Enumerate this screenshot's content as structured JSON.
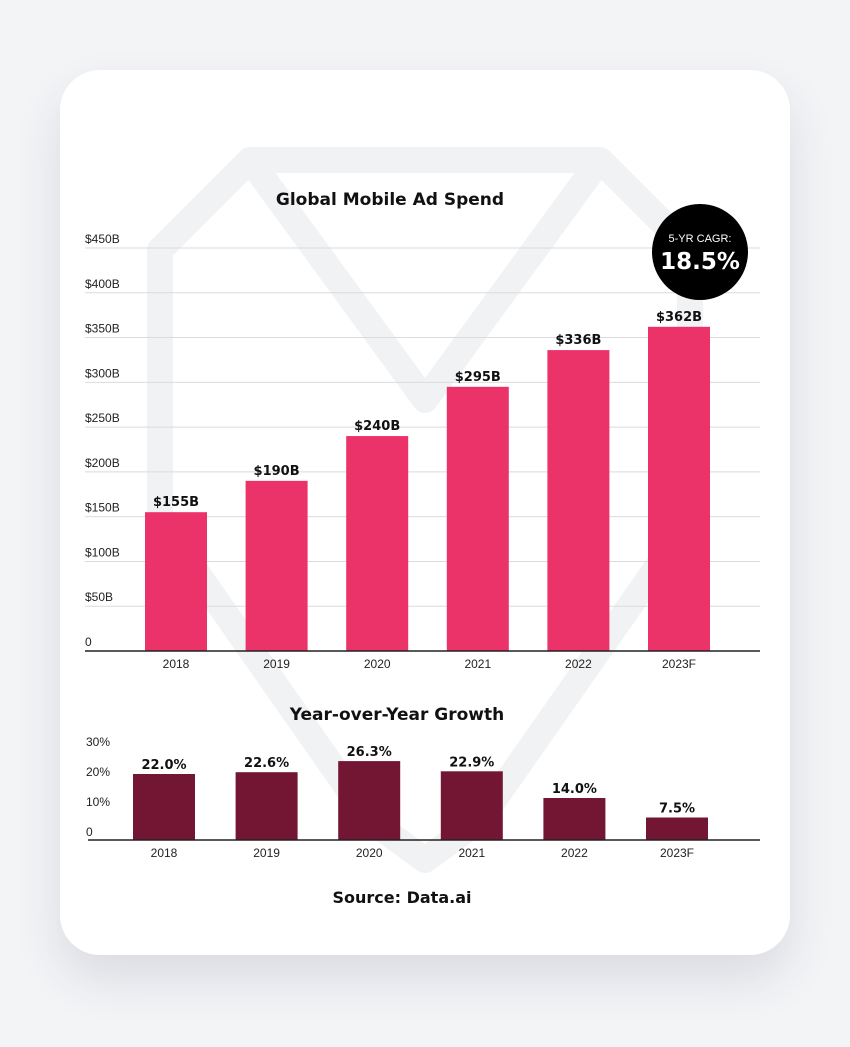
{
  "colors": {
    "background": "#f3f4f6",
    "card": "#ffffff",
    "spend_bar": "#eb336a",
    "growth_bar": "#731634",
    "badge": "#000000",
    "text": "#111111"
  },
  "chart_data": [
    {
      "type": "bar",
      "title": "Global Mobile Ad Spend",
      "xlabel": "",
      "ylabel": "",
      "categories": [
        "2018",
        "2019",
        "2020",
        "2021",
        "2022",
        "2023F"
      ],
      "values": [
        155,
        190,
        240,
        295,
        336,
        362
      ],
      "value_labels": [
        "$155B",
        "$190B",
        "$240B",
        "$295B",
        "$336B",
        "$362B"
      ],
      "ylim": [
        0,
        450
      ],
      "yticks": [
        0,
        50,
        100,
        150,
        200,
        250,
        300,
        350,
        400,
        450
      ],
      "ytick_labels": [
        "0",
        "$50B",
        "$100B",
        "$150B",
        "$200B",
        "$250B",
        "$300B",
        "$350B",
        "$400B",
        "$450B"
      ],
      "grid": true,
      "annotation": {
        "label": "5-YR CAGR:",
        "value": "18.5%"
      }
    },
    {
      "type": "bar",
      "title": "Year-over-Year Growth",
      "xlabel": "",
      "ylabel": "",
      "categories": [
        "2018",
        "2019",
        "2020",
        "2021",
        "2022",
        "2023F"
      ],
      "values": [
        22.0,
        22.6,
        26.3,
        22.9,
        14.0,
        7.5
      ],
      "value_labels": [
        "22.0%",
        "22.6%",
        "26.3%",
        "22.9%",
        "14.0%",
        "7.5%"
      ],
      "ylim": [
        0,
        30
      ],
      "yticks": [
        0,
        10,
        20,
        30
      ],
      "ytick_labels": [
        "0",
        "10%",
        "20%",
        "30%"
      ],
      "grid": false
    }
  ],
  "source": "Source: Data.ai"
}
